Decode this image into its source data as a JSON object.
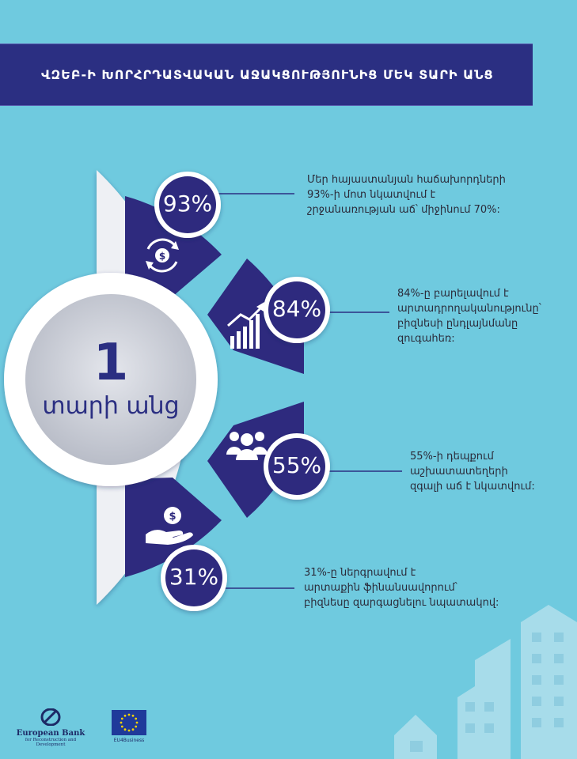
{
  "header": {
    "title": "ՎԶԵԲ-Ի ԽՈՐՀՐԴԱՏՎԱԿԱՆ  ԱՋԱԿՑՈՒԹՅՈՒՆԻՑ ՄԵԿ ՏԱՐԻ ԱՆՑ"
  },
  "center": {
    "big": "1",
    "small": "տարի անց"
  },
  "stats": [
    {
      "value": "93%",
      "icon": "dollar-cycle-icon",
      "text": "Մեր հայաստանյան հաճախորդների\n93%-ի մոտ նկատվում է\nշրջանառության աճ՝ միջինում 70%:"
    },
    {
      "value": "84%",
      "icon": "growth-chart-icon",
      "text": "84%-ը բարելավում է\nարտադրողականությունը՝\nբիզնեսի ընդլայնմանը\nզուգահեռ:"
    },
    {
      "value": "55%",
      "icon": "people-group-icon",
      "text": "55%-ի դեպքում\nաշխատատեղերի\nզգալի աճ է նկատվում:"
    },
    {
      "value": "31%",
      "icon": "money-hand-icon",
      "text": "31%-ը ներգրավում է\nարտաքին ֆինանսավորում՝\nբիզնեսը զարգացնելու նպատակով:"
    }
  ],
  "footer": {
    "ebrd_name": "European Bank",
    "ebrd_sub": "for Reconstruction and Development",
    "eu_label": "EU4Business"
  },
  "colors": {
    "background": "#6fcadf",
    "navy": "#2b2f82",
    "wedge": "#2e2a7e",
    "ring": "#ffffff",
    "buildings": "#a7dcea"
  }
}
